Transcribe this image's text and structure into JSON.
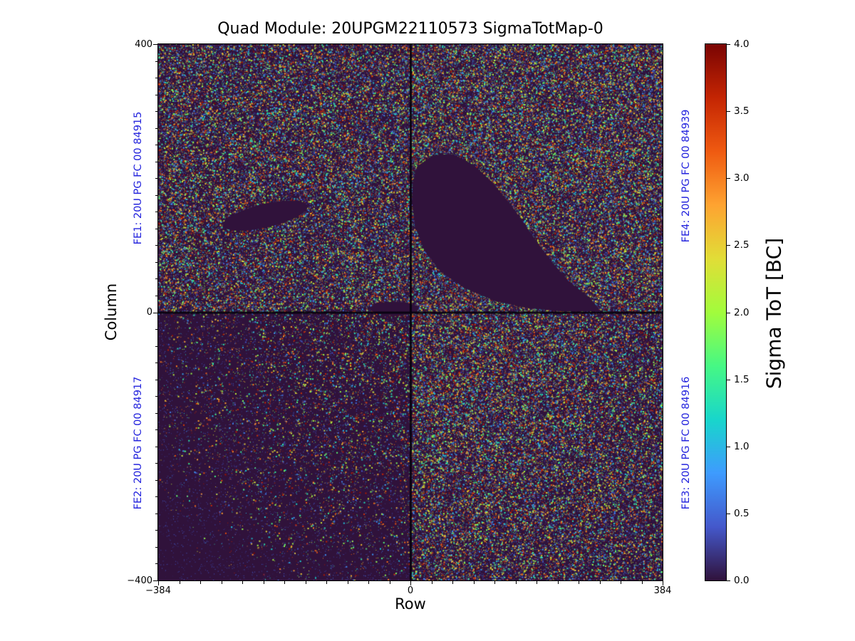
{
  "title": "Quad Module: 20UPGM22110573 SigmaTotMap-0",
  "axes": {
    "xlabel": "Row",
    "ylabel": "Column",
    "xticks": [
      "−384",
      "0",
      "384"
    ],
    "yticks": [
      "400",
      "0",
      "−400"
    ]
  },
  "fe_labels": {
    "fe1": "FE1: 20U PG FC 00 84915",
    "fe2": "FE2: 20U PG FC 00 84917",
    "fe3": "FE3: 20U PG FC 00 84916",
    "fe4": "FE4: 20U PG FC 00 84939",
    "color": "#2323dd"
  },
  "colorbar": {
    "label": "Sigma ToT [BC]",
    "ticks": [
      "4.0",
      "3.5",
      "3.0",
      "2.5",
      "2.0",
      "1.5",
      "1.0",
      "0.5",
      "0.0"
    ]
  },
  "chart_data": {
    "type": "heatmap",
    "title": "Quad Module: 20UPGM22110573 SigmaTotMap-0",
    "xlabel": "Row",
    "ylabel": "Column",
    "xlim": [
      -384,
      384
    ],
    "ylim": [
      -400,
      400
    ],
    "zlabel": "Sigma ToT [BC]",
    "zlim": [
      0.0,
      4.0
    ],
    "colormap": "turbo",
    "background_value_color": "#30123b",
    "colormap_stops": [
      "#30123b",
      "#4458cb",
      "#3e9bfe",
      "#18d6cb",
      "#46f884",
      "#a2fc3c",
      "#e1dd37",
      "#fea331",
      "#ef5a11",
      "#c42503",
      "#7a0403"
    ],
    "quadrants": [
      {
        "label": "FE1: 20U PG FC 00 84915",
        "position": "top-left",
        "row_range": [
          -384,
          0
        ],
        "column_range": [
          0,
          400
        ],
        "noise_level": "high",
        "note": "dense random sigma-ToT noise speckle; small dark diagonal dead streak near row -235, column 130"
      },
      {
        "label": "FE4: 20U PG FC 00 84939",
        "position": "top-right",
        "row_range": [
          0,
          384
        ],
        "column_range": [
          0,
          400
        ],
        "noise_level": "high",
        "note": "dense random sigma-ToT noise speckle; large dark bean-shaped dead region spanning roughly rows 5-290, columns 0-215"
      },
      {
        "label": "FE2: 20U PG FC 00 84917",
        "position": "bottom-left",
        "row_range": [
          -384,
          0
        ],
        "column_range": [
          -400,
          0
        ],
        "noise_level": "low",
        "note": "sparse noise, denser towards module centre"
      },
      {
        "label": "FE3: 20U PG FC 00 84916",
        "position": "bottom-right",
        "row_range": [
          0,
          384
        ],
        "column_range": [
          -400,
          0
        ],
        "noise_level": "high",
        "note": "dense random noise, slightly sparser towards outer corner"
      }
    ],
    "render": {
      "quadrant_noise": [
        {
          "name": "FE1",
          "x0": 0.0,
          "y0": 0.0,
          "x1": 0.5,
          "y1": 0.5,
          "count": 27000,
          "dim": 12000,
          "seed": 101
        },
        {
          "name": "FE4",
          "x0": 0.5,
          "y0": 0.0,
          "x1": 1.0,
          "y1": 0.5,
          "count": 32000,
          "dim": 14000,
          "seed": 202
        },
        {
          "name": "FE2",
          "x0": 0.0,
          "y0": 0.5,
          "x1": 0.5,
          "y1": 1.0,
          "count": 16000,
          "dim": 5000,
          "seed": 303,
          "bias": [
            1.0,
            0.0,
            0.8
          ]
        },
        {
          "name": "FE3",
          "x0": 0.5,
          "y0": 0.5,
          "x1": 1.0,
          "y1": 1.0,
          "count": 34000,
          "dim": 12000,
          "seed": 404,
          "bias": [
            0.25,
            0.25,
            0.4
          ]
        }
      ],
      "masked_polygons": [
        [
          [
            0.513,
            0.228
          ],
          [
            0.545,
            0.207
          ],
          [
            0.585,
            0.205
          ],
          [
            0.625,
            0.225
          ],
          [
            0.663,
            0.258
          ],
          [
            0.7,
            0.3
          ],
          [
            0.737,
            0.35
          ],
          [
            0.775,
            0.4
          ],
          [
            0.815,
            0.443
          ],
          [
            0.855,
            0.472
          ],
          [
            0.873,
            0.492
          ],
          [
            0.873,
            0.498
          ],
          [
            0.8,
            0.498
          ],
          [
            0.73,
            0.492
          ],
          [
            0.665,
            0.478
          ],
          [
            0.607,
            0.455
          ],
          [
            0.56,
            0.424
          ],
          [
            0.528,
            0.385
          ],
          [
            0.509,
            0.34
          ],
          [
            0.503,
            0.292
          ],
          [
            0.505,
            0.255
          ]
        ]
      ],
      "masked_ellipses": [
        {
          "cx": 0.212,
          "cy": 0.32,
          "rx": 0.086,
          "ry": 0.022,
          "rot": -13
        },
        {
          "cx": 0.468,
          "cy": 0.493,
          "rx": 0.048,
          "ry": 0.013,
          "rot": 0
        }
      ]
    }
  }
}
